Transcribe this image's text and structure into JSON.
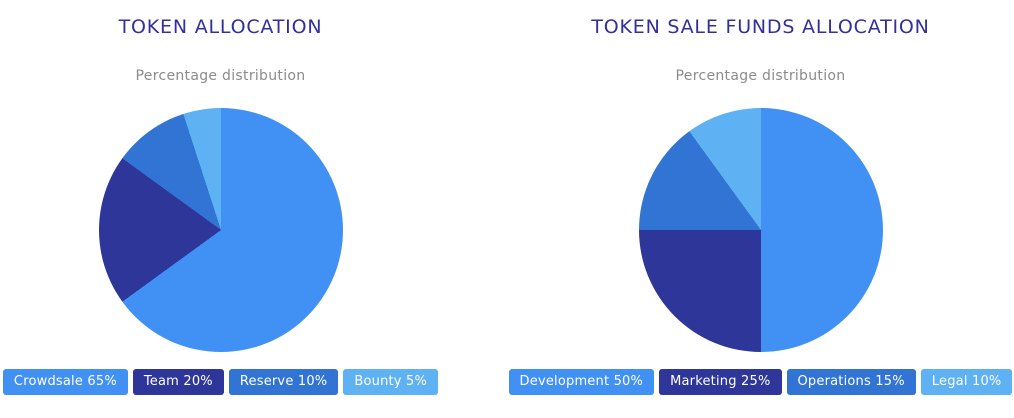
{
  "page": {
    "background": "#ffffff"
  },
  "theme": {
    "title_color": "#332f9d",
    "subtitle_color": "#8b8b8b",
    "legend_text_color": "#ffffff"
  },
  "chart_data": [
    {
      "type": "pie",
      "title": "TOKEN ALLOCATION",
      "subtitle": "Percentage distribution",
      "legend_position": "bottom",
      "start_angle_deg": 0,
      "direction": "clockwise",
      "slices": [
        {
          "label": "Crowdsale",
          "value": 65,
          "legend": "Crowdsale 65%",
          "color": "#4191f5"
        },
        {
          "label": "Team",
          "value": 20,
          "legend": "Team 20%",
          "color": "#2f3699"
        },
        {
          "label": "Reserve",
          "value": 10,
          "legend": "Reserve 10%",
          "color": "#3174d4"
        },
        {
          "label": "Bounty",
          "value": 5,
          "legend": "Bounty 5%",
          "color": "#5eb1f2"
        }
      ]
    },
    {
      "type": "pie",
      "title": "TOKEN SALE FUNDS ALLOCATION",
      "subtitle": "Percentage distribution",
      "legend_position": "bottom",
      "start_angle_deg": 0,
      "direction": "clockwise",
      "slices": [
        {
          "label": "Development",
          "value": 50,
          "legend": "Development 50%",
          "color": "#4191f5"
        },
        {
          "label": "Marketing",
          "value": 25,
          "legend": "Marketing 25%",
          "color": "#2f3699"
        },
        {
          "label": "Operations",
          "value": 15,
          "legend": "Operations 15%",
          "color": "#3174d4"
        },
        {
          "label": "Legal",
          "value": 10,
          "legend": "Legal 10%",
          "color": "#5eb1f2"
        }
      ]
    }
  ]
}
